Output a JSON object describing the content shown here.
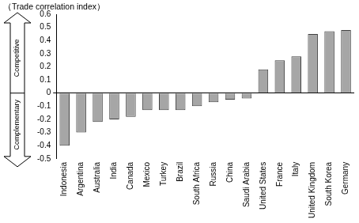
{
  "chart_data": {
    "type": "bar",
    "y_label": "（Trade correlation index）",
    "annotations": [
      "Competitive",
      "Complementary"
    ],
    "categories": [
      "Indonesia",
      "Argentina",
      "Australia",
      "India",
      "Canada",
      "Mexico",
      "Turkey",
      "Brazil",
      "South Africa",
      "Russia",
      "China",
      "Saudi Arabia",
      "United States",
      "France",
      "Italy",
      "United Kingdom",
      "South Korea",
      "Germany"
    ],
    "values": [
      -0.4,
      -0.3,
      -0.22,
      -0.2,
      -0.18,
      -0.13,
      -0.13,
      -0.13,
      -0.1,
      -0.07,
      -0.05,
      -0.04,
      0.18,
      0.25,
      0.28,
      0.45,
      0.47,
      0.48
    ],
    "color": "#a6a6a6",
    "ylim": [
      -0.5,
      0.6
    ],
    "yticks": [
      -0.5,
      -0.4,
      -0.3,
      -0.2,
      -0.1,
      0,
      0.1,
      0.2,
      0.3,
      0.4,
      0.5,
      0.6
    ],
    "grid": false
  }
}
